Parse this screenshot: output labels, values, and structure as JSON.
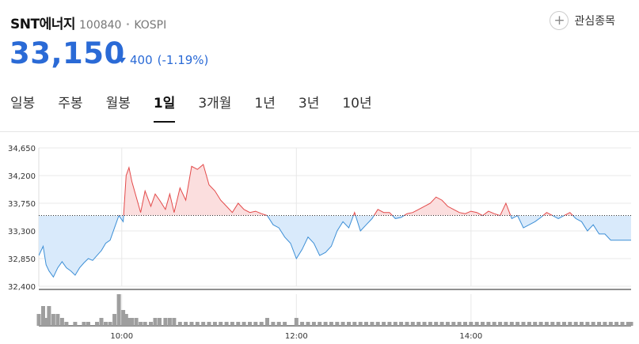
{
  "stock": {
    "name": "SNT에너지",
    "code": "100840",
    "market": "KOSPI",
    "price": "33,150",
    "change": "400",
    "change_pct": "(-1.19%)",
    "direction": "down"
  },
  "watchlist_label": "관심종목",
  "tabs": [
    {
      "label": "일봉",
      "active": false
    },
    {
      "label": "주봉",
      "active": false
    },
    {
      "label": "월봉",
      "active": false
    },
    {
      "label": "1일",
      "active": true
    },
    {
      "label": "3개월",
      "active": false
    },
    {
      "label": "1년",
      "active": false
    },
    {
      "label": "3년",
      "active": false
    },
    {
      "label": "10년",
      "active": false
    }
  ],
  "colors": {
    "up": "#e34a4a",
    "down": "#2a6ad6",
    "line_down": "#3d8fd6",
    "fill_up": "#fbdede",
    "fill_down": "#d9eafb",
    "volume": "#9e9e9e"
  },
  "chart_data": {
    "type": "area",
    "series_label": "intraday price",
    "baseline": 33550,
    "ylim": [
      32400,
      34650
    ],
    "yticks": [
      34650,
      34200,
      33750,
      33300,
      32850,
      32400
    ],
    "ytick_labels": [
      "34,650",
      "34,200",
      "33,750",
      "33,300",
      "32,850",
      "32,400"
    ],
    "xticks": [
      "10:00",
      "12:00",
      "14:00"
    ],
    "xtick_minutes": [
      540,
      660,
      780
    ],
    "time_range_minutes": [
      483,
      890
    ],
    "x": [
      483,
      486,
      488,
      490,
      493,
      496,
      499,
      502,
      505,
      508,
      511,
      514,
      517,
      520,
      523,
      526,
      529,
      532,
      535,
      538,
      541,
      543,
      545,
      547,
      550,
      553,
      556,
      560,
      563,
      566,
      570,
      573,
      576,
      580,
      584,
      588,
      592,
      596,
      600,
      604,
      608,
      612,
      616,
      620,
      624,
      628,
      632,
      636,
      640,
      644,
      648,
      652,
      656,
      660,
      664,
      668,
      672,
      676,
      680,
      684,
      688,
      692,
      696,
      700,
      704,
      708,
      712,
      716,
      720,
      724,
      728,
      732,
      736,
      740,
      744,
      748,
      752,
      756,
      760,
      764,
      768,
      772,
      776,
      780,
      784,
      788,
      792,
      796,
      800,
      804,
      808,
      812,
      816,
      820,
      824,
      828,
      832,
      836,
      840,
      844,
      848,
      852,
      856,
      860,
      864,
      868,
      872,
      876,
      880,
      884,
      888,
      890
    ],
    "y": [
      32900,
      33050,
      32750,
      32650,
      32550,
      32700,
      32800,
      32700,
      32650,
      32580,
      32700,
      32780,
      32850,
      32820,
      32900,
      32980,
      33100,
      33150,
      33350,
      33550,
      33450,
      34200,
      34330,
      34100,
      33850,
      33600,
      33950,
      33700,
      33900,
      33800,
      33650,
      33900,
      33600,
      34000,
      33800,
      34350,
      34300,
      34380,
      34050,
      33950,
      33800,
      33700,
      33600,
      33750,
      33650,
      33600,
      33620,
      33580,
      33550,
      33400,
      33350,
      33200,
      33100,
      32850,
      33000,
      33200,
      33100,
      32900,
      32950,
      33050,
      33300,
      33450,
      33350,
      33600,
      33300,
      33400,
      33500,
      33650,
      33600,
      33600,
      33500,
      33520,
      33580,
      33600,
      33650,
      33700,
      33750,
      33850,
      33800,
      33700,
      33650,
      33600,
      33580,
      33620,
      33600,
      33550,
      33620,
      33580,
      33550,
      33750,
      33500,
      33550,
      33350,
      33400,
      33450,
      33520,
      33600,
      33550,
      33500,
      33550,
      33600,
      33500,
      33450,
      33300,
      33400,
      33250,
      33250,
      33150,
      33150,
      33150,
      33150,
      33150
    ],
    "volume": [
      3,
      5,
      2,
      5,
      3,
      3,
      2,
      1,
      0,
      1,
      0,
      1,
      1,
      0,
      1,
      2,
      1,
      1,
      3,
      8,
      4,
      3,
      2,
      2,
      2,
      1,
      1,
      1,
      2,
      2,
      2,
      2,
      2,
      1,
      1,
      1,
      1,
      1,
      1,
      1,
      1,
      1,
      1,
      1,
      1,
      1,
      1,
      1,
      2,
      1,
      1,
      1,
      0,
      2,
      1,
      1,
      1,
      1,
      1,
      1,
      1,
      1,
      1,
      1,
      1,
      1,
      1,
      1,
      1,
      1,
      1,
      1,
      1,
      1,
      1,
      1,
      1,
      1,
      1,
      1,
      1,
      1,
      1,
      1,
      1,
      1,
      1,
      1,
      1,
      1,
      1,
      1,
      1,
      1,
      1,
      1,
      1,
      1,
      1,
      1,
      1,
      1,
      1,
      1,
      1,
      1,
      1,
      1,
      1,
      1,
      1,
      1
    ]
  }
}
